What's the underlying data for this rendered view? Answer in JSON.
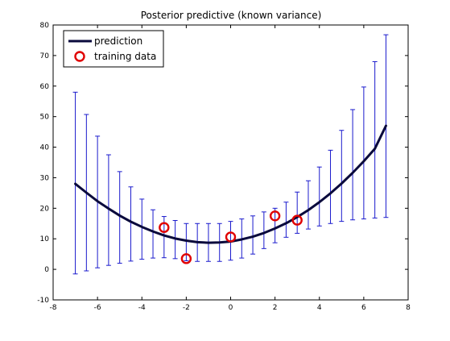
{
  "chart_data": {
    "type": "line",
    "title": "Posterior predictive (known variance)",
    "xlabel": "",
    "ylabel": "",
    "xlim": [
      -8,
      8
    ],
    "ylim": [
      -10,
      80
    ],
    "xticks": [
      -8,
      -6,
      -4,
      -2,
      0,
      2,
      4,
      6,
      8
    ],
    "yticks": [
      -10,
      0,
      10,
      20,
      30,
      40,
      50,
      60,
      70,
      80
    ],
    "grid": false,
    "legend": {
      "placement": "top-left",
      "entries": [
        "prediction",
        "training data"
      ]
    },
    "colors": {
      "prediction": "#0a0a3c",
      "training_data": "#e00000",
      "error_bars": "#1a1acd",
      "axes": "#000000"
    },
    "series": [
      {
        "name": "prediction",
        "kind": "line",
        "x": [
          -7,
          -6.5,
          -6,
          -5.5,
          -5,
          -4.5,
          -4,
          -3.5,
          -3,
          -2.5,
          -2,
          -1.5,
          -1,
          -0.5,
          0,
          0.5,
          1,
          1.5,
          2,
          2.5,
          3,
          3.5,
          4,
          4.5,
          5,
          5.5,
          6,
          6.5,
          7
        ],
        "y": [
          28.0,
          25.1,
          22.3,
          19.9,
          17.6,
          15.6,
          13.9,
          12.4,
          11.1,
          10.1,
          9.4,
          8.9,
          8.7,
          8.8,
          9.1,
          9.8,
          10.7,
          11.9,
          13.4,
          15.1,
          17.1,
          19.4,
          22.0,
          24.9,
          28.1,
          31.6,
          35.4,
          39.5,
          47.0
        ]
      },
      {
        "name": "training data",
        "kind": "scatter",
        "x": [
          -3,
          -2,
          0,
          2,
          3
        ],
        "y": [
          13.7,
          3.5,
          10.6,
          17.5,
          16.1
        ]
      }
    ],
    "error_bars": {
      "x": [
        -7,
        -6.5,
        -6,
        -5.5,
        -5,
        -4.5,
        -4,
        -3.5,
        -3,
        -2.5,
        -2,
        -1.5,
        -1,
        -0.5,
        0,
        0.5,
        1,
        1.5,
        2,
        2.5,
        3,
        3.5,
        4,
        4.5,
        5,
        5.5,
        6,
        6.5,
        7
      ],
      "lower": [
        -1.5,
        -0.5,
        0.5,
        1.3,
        2.0,
        2.7,
        3.3,
        3.7,
        3.8,
        3.5,
        2.8,
        2.6,
        2.6,
        2.6,
        3.0,
        3.7,
        5.0,
        6.8,
        8.7,
        10.5,
        11.8,
        13.2,
        14.2,
        15.0,
        15.7,
        16.2,
        16.5,
        16.8,
        17.0
      ],
      "upper": [
        58.0,
        50.7,
        43.6,
        37.5,
        32.0,
        27.0,
        23.0,
        19.5,
        17.3,
        16.0,
        15.0,
        15.0,
        15.0,
        15.0,
        15.7,
        16.5,
        17.5,
        18.8,
        20.0,
        22.0,
        25.3,
        29.0,
        33.5,
        39.0,
        45.5,
        52.3,
        59.7,
        68.0,
        76.8
      ]
    }
  }
}
